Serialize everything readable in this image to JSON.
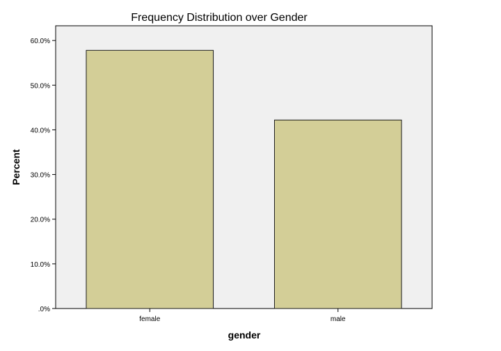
{
  "chart_data": {
    "type": "bar",
    "title": "Frequency Distribution over Gender",
    "xlabel": "gender",
    "ylabel": "Percent",
    "categories": [
      "female",
      "male"
    ],
    "values": [
      57.8,
      42.2
    ],
    "ylim": [
      0,
      63.3
    ],
    "yticks": [
      0,
      10,
      20,
      30,
      40,
      50,
      60
    ],
    "ytick_labels": [
      ".0%",
      "10.0%",
      "20.0%",
      "30.0%",
      "40.0%",
      "50.0%",
      "60.0%"
    ],
    "grid": false,
    "legend": "none",
    "colors": {
      "bar_fill": "#d3ce97",
      "bar_stroke": "#1a1a1a",
      "plot_background": "#f0f0f0",
      "plot_border": "#000000"
    }
  }
}
